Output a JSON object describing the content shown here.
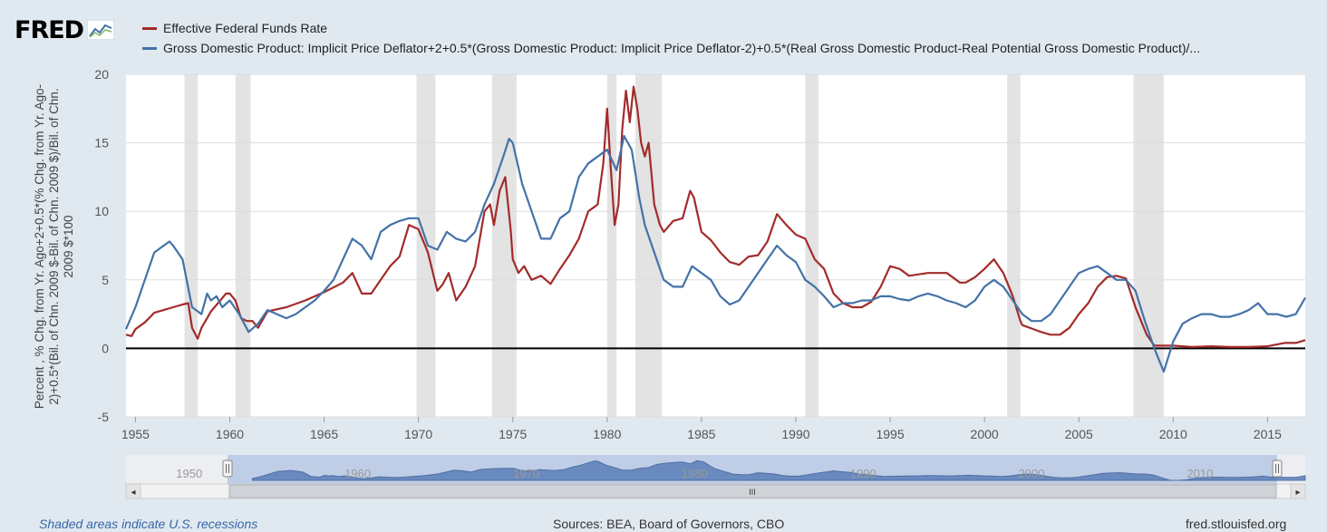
{
  "brand": {
    "logo_text": "FRED",
    "logo_icon": "fred-chart-icon"
  },
  "legend": [
    {
      "label": "Effective Federal Funds Rate",
      "color": "#a32b2b"
    },
    {
      "label": "Gross Domestic Product: Implicit Price Deflator+2+0.5*(Gross Domestic Product: Implicit Price Deflator-2)+0.5*(Real Gross Domestic Product-Real Potential Gross Domestic Product)/...",
      "color": "#4472a8"
    }
  ],
  "footer": {
    "recession_note": "Shaded areas indicate U.S. recessions",
    "sources": "Sources: BEA, Board of Governors, CBO",
    "site": "fred.stlouisfed.org"
  },
  "navigator": {
    "labels": [
      "1950",
      "1960",
      "1970",
      "1980",
      "1990",
      "2000",
      "2010"
    ],
    "scroll_grip": "III",
    "left_arrow": "◂",
    "right_arrow": "▸"
  },
  "chart_data": {
    "type": "line",
    "ylabel": "Percent , % Chg. from Yr. Ago+2+0.5*(% Chg. from Yr. Ago-2)+0.5*(Bil. of Chn. 2009 $-Bil. of Chn. 2009 $)/Bil. of Chn. 2009 $*100",
    "xlim": [
      1954.5,
      2017.0
    ],
    "ylim": [
      -5,
      20
    ],
    "yticks": [
      -5,
      0,
      5,
      10,
      15,
      20
    ],
    "xticks": [
      1955,
      1960,
      1965,
      1970,
      1975,
      1980,
      1985,
      1990,
      1995,
      2000,
      2005,
      2010,
      2015
    ],
    "grid": "horizontal",
    "zero_line": true,
    "recessions": [
      [
        1957.6,
        1958.3
      ],
      [
        1960.3,
        1961.1
      ],
      [
        1969.9,
        1970.9
      ],
      [
        1973.9,
        1975.2
      ],
      [
        1980.0,
        1980.5
      ],
      [
        1981.5,
        1982.9
      ],
      [
        1990.5,
        1991.2
      ],
      [
        2001.2,
        2001.9
      ],
      [
        2007.9,
        2009.5
      ]
    ],
    "series": [
      {
        "name": "Effective Federal Funds Rate",
        "color": "#a32b2b",
        "x": [
          1954.5,
          1954.8,
          1955.0,
          1955.5,
          1956.0,
          1956.5,
          1957.0,
          1957.5,
          1957.8,
          1958.0,
          1958.3,
          1958.5,
          1958.8,
          1959.0,
          1959.5,
          1959.8,
          1960.0,
          1960.3,
          1960.6,
          1960.9,
          1961.2,
          1961.5,
          1962.0,
          1963.0,
          1964.0,
          1965.0,
          1966.0,
          1966.5,
          1967.0,
          1967.5,
          1968.0,
          1968.5,
          1969.0,
          1969.5,
          1970.0,
          1970.5,
          1971.0,
          1971.3,
          1971.6,
          1972.0,
          1972.5,
          1973.0,
          1973.5,
          1973.8,
          1974.0,
          1974.3,
          1974.6,
          1974.9,
          1975.0,
          1975.3,
          1975.6,
          1976.0,
          1976.5,
          1977.0,
          1977.5,
          1978.0,
          1978.5,
          1979.0,
          1979.5,
          1979.8,
          1980.0,
          1980.2,
          1980.4,
          1980.6,
          1980.8,
          1981.0,
          1981.2,
          1981.4,
          1981.6,
          1981.8,
          1982.0,
          1982.2,
          1982.5,
          1982.8,
          1983.0,
          1983.5,
          1984.0,
          1984.4,
          1984.6,
          1985.0,
          1985.5,
          1986.0,
          1986.5,
          1987.0,
          1987.5,
          1988.0,
          1988.5,
          1989.0,
          1989.5,
          1990.0,
          1990.5,
          1991.0,
          1991.5,
          1992.0,
          1992.5,
          1993.0,
          1993.5,
          1994.0,
          1994.5,
          1995.0,
          1995.5,
          1996.0,
          1997.0,
          1998.0,
          1998.7,
          1999.0,
          1999.5,
          2000.0,
          2000.5,
          2001.0,
          2001.5,
          2001.9,
          2002.0,
          2003.0,
          2003.5,
          2004.0,
          2004.5,
          2005.0,
          2005.5,
          2006.0,
          2006.5,
          2007.0,
          2007.5,
          2008.0,
          2008.3,
          2008.6,
          2009.0,
          2010.0,
          2011.0,
          2012.0,
          2013.0,
          2014.0,
          2015.0,
          2015.9,
          2016.5,
          2017.0
        ],
        "y": [
          1.0,
          0.9,
          1.4,
          1.9,
          2.6,
          2.8,
          3.0,
          3.2,
          3.3,
          1.5,
          0.7,
          1.5,
          2.2,
          2.7,
          3.5,
          4.0,
          4.0,
          3.5,
          2.2,
          2.0,
          2.0,
          1.5,
          2.7,
          3.0,
          3.5,
          4.1,
          4.8,
          5.5,
          4.0,
          4.0,
          5.0,
          6.0,
          6.7,
          9.0,
          8.7,
          7.0,
          4.2,
          4.7,
          5.5,
          3.5,
          4.5,
          6.0,
          10.0,
          10.5,
          9.0,
          11.5,
          12.5,
          8.5,
          6.5,
          5.5,
          6.0,
          5.0,
          5.3,
          4.7,
          5.8,
          6.8,
          8.0,
          10.0,
          10.5,
          13.5,
          17.5,
          13.0,
          9.0,
          10.5,
          16.0,
          18.8,
          16.5,
          19.1,
          17.5,
          15.0,
          14.0,
          15.0,
          10.5,
          9.0,
          8.5,
          9.3,
          9.5,
          11.5,
          11.0,
          8.5,
          7.9,
          7.0,
          6.3,
          6.1,
          6.7,
          6.8,
          7.8,
          9.8,
          9.0,
          8.3,
          8.0,
          6.5,
          5.8,
          4.0,
          3.3,
          3.0,
          3.0,
          3.4,
          4.5,
          6.0,
          5.8,
          5.3,
          5.5,
          5.5,
          4.8,
          4.8,
          5.2,
          5.8,
          6.5,
          5.5,
          3.8,
          2.0,
          1.7,
          1.2,
          1.0,
          1.0,
          1.5,
          2.5,
          3.3,
          4.5,
          5.2,
          5.3,
          5.1,
          3.0,
          2.0,
          1.0,
          0.2,
          0.2,
          0.1,
          0.15,
          0.1,
          0.1,
          0.15,
          0.4,
          0.4,
          0.6
        ]
      },
      {
        "name": "Gross Domestic Product: Implicit Price Deflator+2+0.5*(Gross Domestic Product: Implicit Price Deflator-2)+0.5*(Real Gross Domestic Product-Real Potential Gross Domestic Product)/...",
        "color": "#4472a8",
        "x": [
          1954.5,
          1955.0,
          1955.5,
          1956.0,
          1956.5,
          1956.8,
          1957.0,
          1957.5,
          1958.0,
          1958.5,
          1958.8,
          1959.0,
          1959.3,
          1959.6,
          1960.0,
          1960.5,
          1961.0,
          1961.5,
          1962.0,
          1962.5,
          1963.0,
          1963.5,
          1964.0,
          1964.5,
          1965.0,
          1965.5,
          1966.0,
          1966.5,
          1967.0,
          1967.5,
          1968.0,
          1968.5,
          1969.0,
          1969.5,
          1970.0,
          1970.5,
          1971.0,
          1971.5,
          1972.0,
          1972.5,
          1973.0,
          1973.5,
          1974.0,
          1974.5,
          1974.8,
          1975.0,
          1975.5,
          1976.0,
          1976.5,
          1977.0,
          1977.5,
          1978.0,
          1978.5,
          1979.0,
          1979.5,
          1980.0,
          1980.5,
          1980.9,
          1981.3,
          1981.7,
          1982.0,
          1982.5,
          1983.0,
          1983.5,
          1984.0,
          1984.5,
          1985.0,
          1985.5,
          1986.0,
          1986.5,
          1987.0,
          1987.5,
          1988.0,
          1988.5,
          1989.0,
          1989.5,
          1990.0,
          1990.5,
          1991.0,
          1991.5,
          1992.0,
          1992.5,
          1993.0,
          1993.5,
          1994.0,
          1994.5,
          1995.0,
          1995.5,
          1996.0,
          1996.5,
          1997.0,
          1997.5,
          1998.0,
          1998.5,
          1999.0,
          1999.5,
          2000.0,
          2000.5,
          2001.0,
          2001.5,
          2002.0,
          2002.5,
          2003.0,
          2003.5,
          2004.0,
          2004.5,
          2005.0,
          2005.5,
          2006.0,
          2006.5,
          2007.0,
          2007.5,
          2008.0,
          2008.5,
          2009.0,
          2009.5,
          2010.0,
          2010.5,
          2011.0,
          2011.5,
          2012.0,
          2012.5,
          2013.0,
          2013.5,
          2014.0,
          2014.5,
          2015.0,
          2015.5,
          2016.0,
          2016.5,
          2017.0
        ],
        "y": [
          1.4,
          3.0,
          5.0,
          7.0,
          7.5,
          7.8,
          7.5,
          6.5,
          3.0,
          2.5,
          4.0,
          3.5,
          3.8,
          3.0,
          3.5,
          2.5,
          1.2,
          1.8,
          2.8,
          2.5,
          2.2,
          2.5,
          3.0,
          3.5,
          4.2,
          5.0,
          6.5,
          8.0,
          7.5,
          6.5,
          8.5,
          9.0,
          9.3,
          9.5,
          9.5,
          7.5,
          7.2,
          8.5,
          8.0,
          7.8,
          8.5,
          10.5,
          12.0,
          14.0,
          15.3,
          15.0,
          12.0,
          10.0,
          8.0,
          8.0,
          9.5,
          10.0,
          12.5,
          13.5,
          14.0,
          14.5,
          13.0,
          15.5,
          14.5,
          11.0,
          9.0,
          7.0,
          5.0,
          4.5,
          4.5,
          6.0,
          5.5,
          5.0,
          3.8,
          3.2,
          3.5,
          4.5,
          5.5,
          6.5,
          7.5,
          6.8,
          6.3,
          5.0,
          4.5,
          3.8,
          3.0,
          3.3,
          3.3,
          3.5,
          3.5,
          3.8,
          3.8,
          3.6,
          3.5,
          3.8,
          4.0,
          3.8,
          3.5,
          3.3,
          3.0,
          3.5,
          4.5,
          5.0,
          4.5,
          3.5,
          2.5,
          2.0,
          2.0,
          2.5,
          3.5,
          4.5,
          5.5,
          5.8,
          6.0,
          5.5,
          5.0,
          5.0,
          4.2,
          2.0,
          0.0,
          -1.7,
          0.5,
          1.8,
          2.2,
          2.5,
          2.5,
          2.3,
          2.3,
          2.5,
          2.8,
          3.3,
          2.5,
          2.5,
          2.3,
          2.5,
          3.7
        ]
      }
    ]
  }
}
